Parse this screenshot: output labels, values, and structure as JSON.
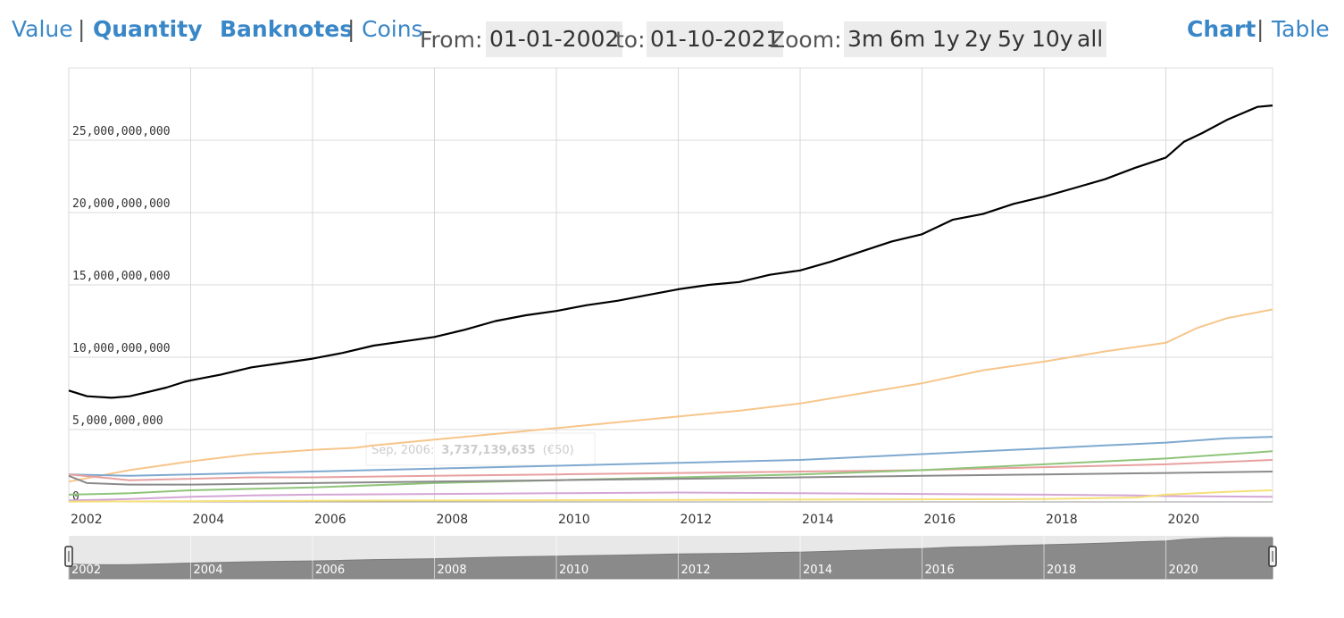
{
  "header": {
    "value_label": "Value",
    "sep1": "|",
    "quantity_label": "Quantity",
    "banknotes_label": "Banknotes",
    "sep2": "|",
    "coins_label": "Coins",
    "from_label": "From:",
    "from_value": "01-01-2002",
    "to_label": "to:",
    "to_value": "01-10-2021",
    "zoom_label": "Zoom:",
    "zoom_buttons": [
      "3m",
      "6m",
      "1y",
      "2y",
      "5y",
      "10y",
      "all"
    ],
    "chart_label": "Chart",
    "sep3": "|",
    "table_label": "Table",
    "accent_color": "#3a87c8"
  },
  "tooltip": {
    "date": "Sep, 2006:",
    "value": "3,737,139,635",
    "series": "(€50)"
  },
  "chart_data": {
    "type": "line",
    "x_range": [
      "2002-01",
      "2021-10"
    ],
    "ylim": [
      0,
      30000000000
    ],
    "yticks": [
      0,
      5000000000,
      10000000000,
      15000000000,
      20000000000,
      25000000000
    ],
    "ytick_labels": [
      "0",
      "5,000,000,000",
      "10,000,000,000",
      "15,000,000,000",
      "20,000,000,000",
      "25,000,000,000"
    ],
    "xtick_labels": [
      "2002",
      "2004",
      "2006",
      "2008",
      "2010",
      "2012",
      "2014",
      "2016",
      "2018",
      "2020"
    ],
    "grid": true,
    "series": [
      {
        "color": "#000000",
        "width": 2.2,
        "values": [
          [
            2002.0,
            7700000000.0
          ],
          [
            2002.3,
            7300000000.0
          ],
          [
            2002.7,
            7200000000.0
          ],
          [
            2003.0,
            7300000000.0
          ],
          [
            2003.3,
            7600000000.0
          ],
          [
            2003.6,
            7900000000.0
          ],
          [
            2003.9,
            8300000000.0
          ],
          [
            2004.0,
            8400000000.0
          ],
          [
            2004.5,
            8800000000.0
          ],
          [
            2005.0,
            9300000000.0
          ],
          [
            2005.5,
            9600000000.0
          ],
          [
            2006.0,
            9900000000.0
          ],
          [
            2006.5,
            10300000000.0
          ],
          [
            2007.0,
            10800000000.0
          ],
          [
            2007.5,
            11100000000.0
          ],
          [
            2008.0,
            11400000000.0
          ],
          [
            2008.5,
            11900000000.0
          ],
          [
            2009.0,
            12500000000.0
          ],
          [
            2009.5,
            12900000000.0
          ],
          [
            2010.0,
            13200000000.0
          ],
          [
            2010.5,
            13600000000.0
          ],
          [
            2011.0,
            13900000000.0
          ],
          [
            2011.5,
            14300000000.0
          ],
          [
            2012.0,
            14700000000.0
          ],
          [
            2012.5,
            15000000000.0
          ],
          [
            2013.0,
            15200000000.0
          ],
          [
            2013.5,
            15700000000.0
          ],
          [
            2014.0,
            16000000000.0
          ],
          [
            2014.5,
            16600000000.0
          ],
          [
            2015.0,
            17300000000.0
          ],
          [
            2015.5,
            18000000000.0
          ],
          [
            2016.0,
            18500000000.0
          ],
          [
            2016.5,
            19500000000.0
          ],
          [
            2017.0,
            19900000000.0
          ],
          [
            2017.5,
            20600000000.0
          ],
          [
            2018.0,
            21100000000.0
          ],
          [
            2018.5,
            21700000000.0
          ],
          [
            2019.0,
            22300000000.0
          ],
          [
            2019.5,
            23100000000.0
          ],
          [
            2020.0,
            23800000000.0
          ],
          [
            2020.3,
            24900000000.0
          ],
          [
            2020.6,
            25500000000.0
          ],
          [
            2021.0,
            26400000000.0
          ],
          [
            2021.5,
            27300000000.0
          ],
          [
            2021.75,
            27400000000.0
          ]
        ]
      },
      {
        "color": "#f7c58a",
        "width": 2,
        "values": [
          [
            2002.0,
            1400000000.0
          ],
          [
            2003.0,
            2200000000.0
          ],
          [
            2004.0,
            2800000000.0
          ],
          [
            2005.0,
            3300000000.0
          ],
          [
            2006.0,
            3600000000.0
          ],
          [
            2006.7,
            3740000000.0
          ],
          [
            2007.0,
            3900000000.0
          ],
          [
            2008.0,
            4300000000.0
          ],
          [
            2009.0,
            4700000000.0
          ],
          [
            2010.0,
            5100000000.0
          ],
          [
            2011.0,
            5500000000.0
          ],
          [
            2012.0,
            5900000000.0
          ],
          [
            2013.0,
            6300000000.0
          ],
          [
            2014.0,
            6800000000.0
          ],
          [
            2015.0,
            7500000000.0
          ],
          [
            2016.0,
            8200000000.0
          ],
          [
            2017.0,
            9100000000.0
          ],
          [
            2018.0,
            9700000000.0
          ],
          [
            2019.0,
            10400000000.0
          ],
          [
            2020.0,
            11000000000.0
          ],
          [
            2020.5,
            12000000000.0
          ],
          [
            2021.0,
            12700000000.0
          ],
          [
            2021.75,
            13300000000.0
          ]
        ]
      },
      {
        "color": "#7fa9cf",
        "width": 2,
        "values": [
          [
            2002.0,
            1900000000.0
          ],
          [
            2003.0,
            1800000000.0
          ],
          [
            2004.0,
            1900000000.0
          ],
          [
            2005.0,
            2000000000.0
          ],
          [
            2006.0,
            2100000000.0
          ],
          [
            2007.0,
            2200000000.0
          ],
          [
            2008.0,
            2300000000.0
          ],
          [
            2009.0,
            2400000000.0
          ],
          [
            2010.0,
            2500000000.0
          ],
          [
            2011.0,
            2600000000.0
          ],
          [
            2012.0,
            2700000000.0
          ],
          [
            2013.0,
            2800000000.0
          ],
          [
            2014.0,
            2900000000.0
          ],
          [
            2015.0,
            3100000000.0
          ],
          [
            2016.0,
            3300000000.0
          ],
          [
            2017.0,
            3500000000.0
          ],
          [
            2018.0,
            3700000000.0
          ],
          [
            2019.0,
            3900000000.0
          ],
          [
            2020.0,
            4100000000.0
          ],
          [
            2021.0,
            4400000000.0
          ],
          [
            2021.75,
            4500000000.0
          ]
        ]
      },
      {
        "color": "#e8a0a0",
        "width": 2,
        "values": [
          [
            2002.0,
            1900000000.0
          ],
          [
            2003.0,
            1500000000.0
          ],
          [
            2004.0,
            1600000000.0
          ],
          [
            2005.0,
            1700000000.0
          ],
          [
            2006.0,
            1700000000.0
          ],
          [
            2008.0,
            1800000000.0
          ],
          [
            2010.0,
            1900000000.0
          ],
          [
            2012.0,
            2000000000.0
          ],
          [
            2014.0,
            2100000000.0
          ],
          [
            2016.0,
            2200000000.0
          ],
          [
            2018.0,
            2400000000.0
          ],
          [
            2020.0,
            2600000000.0
          ],
          [
            2021.75,
            2900000000.0
          ]
        ]
      },
      {
        "color": "#8fc47a",
        "width": 2,
        "values": [
          [
            2002.0,
            500000000.0
          ],
          [
            2003.0,
            600000000.0
          ],
          [
            2004.0,
            800000000.0
          ],
          [
            2005.0,
            900000000.0
          ],
          [
            2006.0,
            1000000000.0
          ],
          [
            2008.0,
            1300000000.0
          ],
          [
            2010.0,
            1500000000.0
          ],
          [
            2012.0,
            1700000000.0
          ],
          [
            2014.0,
            1900000000.0
          ],
          [
            2016.0,
            2200000000.0
          ],
          [
            2018.0,
            2600000000.0
          ],
          [
            2020.0,
            3000000000.0
          ],
          [
            2021.75,
            3500000000.0
          ]
        ]
      },
      {
        "color": "#8a8a8a",
        "width": 2,
        "values": [
          [
            2002.0,
            1800000000.0
          ],
          [
            2002.3,
            1300000000.0
          ],
          [
            2003.0,
            1200000000.0
          ],
          [
            2004.0,
            1200000000.0
          ],
          [
            2006.0,
            1300000000.0
          ],
          [
            2008.0,
            1400000000.0
          ],
          [
            2010.0,
            1500000000.0
          ],
          [
            2012.0,
            1600000000.0
          ],
          [
            2014.0,
            1700000000.0
          ],
          [
            2016.0,
            1800000000.0
          ],
          [
            2018.0,
            1900000000.0
          ],
          [
            2020.0,
            2000000000.0
          ],
          [
            2021.75,
            2100000000.0
          ]
        ]
      },
      {
        "color": "#d4a6d4",
        "width": 2,
        "values": [
          [
            2002.0,
            100000000.0
          ],
          [
            2003.0,
            200000000.0
          ],
          [
            2004.0,
            350000000.0
          ],
          [
            2005.0,
            450000000.0
          ],
          [
            2006.0,
            500000000.0
          ],
          [
            2008.0,
            550000000.0
          ],
          [
            2010.0,
            600000000.0
          ],
          [
            2012.0,
            650000000.0
          ],
          [
            2014.0,
            600000000.0
          ],
          [
            2016.0,
            550000000.0
          ],
          [
            2018.0,
            500000000.0
          ],
          [
            2019.5,
            450000000.0
          ],
          [
            2020.0,
            400000000.0
          ],
          [
            2021.75,
            350000000.0
          ]
        ]
      },
      {
        "color": "#f5e07a",
        "width": 2,
        "values": [
          [
            2002.0,
            20000000.0
          ],
          [
            2004.0,
            50000000.0
          ],
          [
            2006.0,
            80000000.0
          ],
          [
            2008.0,
            100000000.0
          ],
          [
            2010.0,
            120000000.0
          ],
          [
            2012.0,
            140000000.0
          ],
          [
            2014.0,
            160000000.0
          ],
          [
            2016.0,
            180000000.0
          ],
          [
            2018.0,
            200000000.0
          ],
          [
            2019.5,
            300000000.0
          ],
          [
            2020.0,
            500000000.0
          ],
          [
            2021.0,
            700000000.0
          ],
          [
            2021.75,
            800000000.0
          ]
        ]
      }
    ]
  }
}
